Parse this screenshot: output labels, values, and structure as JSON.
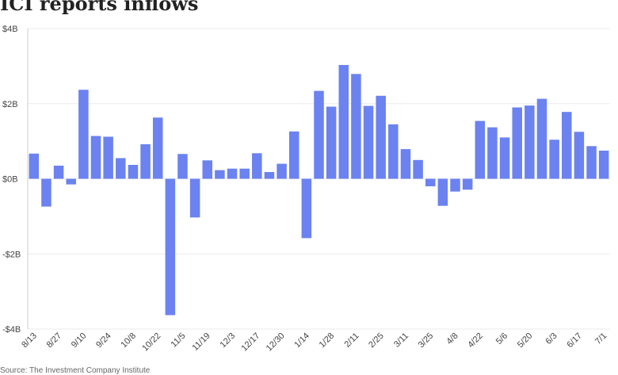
{
  "header": {
    "title": "ICI reports inflows"
  },
  "footer": {
    "source": "Source: The Investment Company Institute"
  },
  "colors": {
    "bar": "#6B82F0",
    "grid": "#ebebeb",
    "axis": "#cccccc"
  },
  "chart_data": {
    "type": "bar",
    "title": "ICI reports inflows",
    "ylim": [
      -4,
      4
    ],
    "y_unit": "$B",
    "yticks": [
      "$4B",
      "$2B",
      "$0B",
      "-$2B",
      "-$4B"
    ],
    "ytick_values": [
      4,
      2,
      0,
      -2,
      -4
    ],
    "xtick_labels": [
      "8/13",
      "8/27",
      "9/10",
      "9/24",
      "10/8",
      "10/22",
      "11/5",
      "11/19",
      "12/3",
      "12/17",
      "12/30",
      "1/14",
      "1/28",
      "2/11",
      "2/25",
      "3/11",
      "3/25",
      "4/8",
      "4/22",
      "5/6",
      "5/20",
      "6/3",
      "6/17",
      "7/1"
    ],
    "values": [
      0.67,
      -0.74,
      0.35,
      -0.15,
      2.37,
      1.14,
      1.12,
      0.55,
      0.37,
      0.92,
      1.63,
      -3.63,
      0.66,
      -1.03,
      0.49,
      0.23,
      0.27,
      0.27,
      0.68,
      0.18,
      0.4,
      1.26,
      -1.58,
      2.34,
      1.92,
      3.03,
      2.79,
      1.94,
      2.21,
      1.45,
      0.79,
      0.5,
      -0.2,
      -0.72,
      -0.34,
      -0.29,
      1.54,
      1.37,
      1.1,
      1.9,
      1.95,
      2.13,
      1.04,
      1.78,
      1.25,
      0.87,
      0.75
    ],
    "grid": true,
    "legend": "none"
  }
}
